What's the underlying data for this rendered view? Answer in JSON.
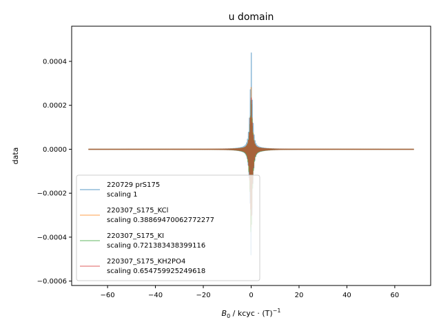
{
  "chart_data": {
    "type": "line",
    "title": "u domain",
    "xlabel": "B",
    "xlabel_sub": "0",
    "xlabel_rest": " / kcyc · (T)",
    "xlabel_sup": "−1",
    "ylabel": "data",
    "xlim": [
      -75,
      75
    ],
    "ylim": [
      -0.00062,
      0.00056
    ],
    "xticks": [
      -60,
      -40,
      -20,
      0,
      20,
      40,
      60
    ],
    "xtick_labels": [
      "−60",
      "−40",
      "−20",
      "0",
      "20",
      "40",
      "60"
    ],
    "yticks": [
      -0.0006,
      -0.0004,
      -0.0002,
      0.0,
      0.0002,
      0.0004
    ],
    "ytick_labels": [
      "−0.0006",
      "−0.0004",
      "−0.0002",
      "0.0000",
      "0.0002",
      "0.0004"
    ],
    "grid": false,
    "legend_position": "lower-left",
    "x_range": [
      -68,
      68
    ],
    "series": [
      {
        "name": "220729 prS175",
        "note": "scaling 1",
        "color": "#1f77b4",
        "alpha": 0.5,
        "peak_max": 0.00052,
        "peak_min": -0.00057
      },
      {
        "name": "220307_S175_KCl",
        "note": "scaling 0.38869470062772277",
        "color": "#ff7f0e",
        "alpha": 0.5,
        "peak_max": 0.00036,
        "peak_min": -0.00042
      },
      {
        "name": "220307_S175_KI",
        "note": "scaling 0.721383438399116",
        "color": "#2ca02c",
        "alpha": 0.5,
        "peak_max": 0.00042,
        "peak_min": -0.00048
      },
      {
        "name": "220307_S175_KH2PO4",
        "note": "scaling 0.654759925249618",
        "color": "#d62728",
        "alpha": 0.5,
        "peak_max": 0.00034,
        "peak_min": -0.0004
      }
    ]
  }
}
